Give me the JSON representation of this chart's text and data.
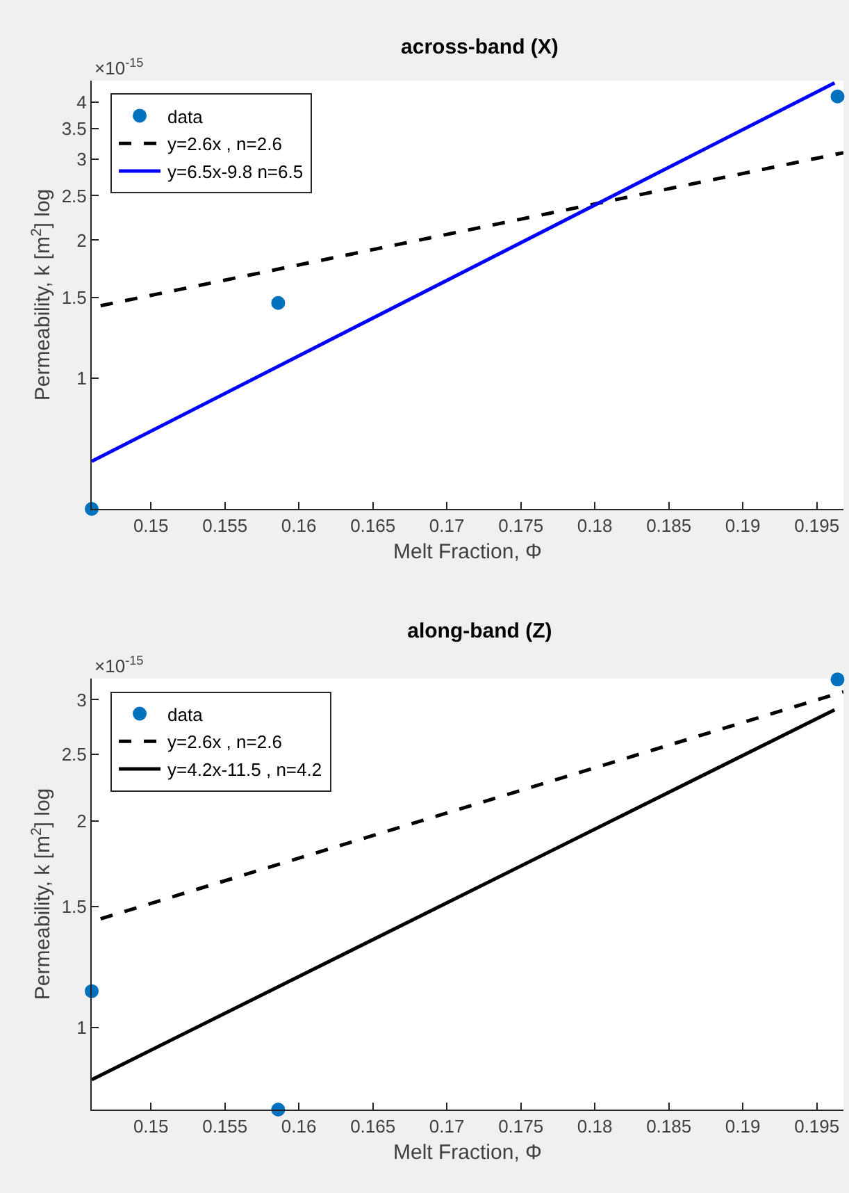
{
  "chart_data": [
    {
      "type": "scatter",
      "title": "across-band (X)",
      "xlabel": "Melt Fraction, Φ",
      "ylabel": "Permeability, k [m$^{2}$] log",
      "annotations": [
        "×10$^{-15}$"
      ],
      "log": true,
      "grid": false,
      "legend": "top left",
      "xlim": [
        0.146,
        0.1968
      ],
      "ylim": [
        0.52,
        4.45
      ],
      "xticks": [
        0.15,
        0.155,
        0.16,
        0.165,
        0.17,
        0.175,
        0.18,
        0.185,
        0.19,
        0.195
      ],
      "yticks": [
        1,
        1.5,
        2,
        2.5,
        3,
        3.5,
        4
      ],
      "series": [
        {
          "name": "data",
          "marker": "circle",
          "color": "#0072bd",
          "x": [
            0.146,
            0.1586,
            0.1964
          ],
          "values": [
            0.52,
            1.46,
            4.11
          ]
        },
        {
          "name": "y=2.6x , n=2.6",
          "type": "line",
          "line_style": "dashed",
          "color": "#000000",
          "x": [
            0.1466,
            0.1968
          ],
          "values": [
            1.44,
            3.1
          ]
        },
        {
          "name": "y=6.5x-9.8 n=6.5",
          "type": "line",
          "line_style": "solid",
          "color": "#0000ff",
          "x": [
            0.146,
            0.1962
          ],
          "values": [
            0.66,
            4.4
          ]
        }
      ]
    },
    {
      "type": "scatter",
      "title": "along-band (Z)",
      "xlabel": "Melt Fraction, Φ",
      "ylabel": "Permeability, k [m$^{2}$] log",
      "annotations": [
        "×10$^{-15}$"
      ],
      "log": true,
      "grid": false,
      "legend": "top left",
      "xlim": [
        0.146,
        0.1968
      ],
      "ylim": [
        0.76,
        3.22
      ],
      "xticks": [
        0.15,
        0.155,
        0.16,
        0.165,
        0.17,
        0.175,
        0.18,
        0.185,
        0.19,
        0.195
      ],
      "yticks": [
        1,
        1.5,
        2,
        2.5,
        3
      ],
      "series": [
        {
          "name": "data",
          "marker": "circle",
          "color": "#0072bd",
          "x": [
            0.146,
            0.1586,
            0.1964
          ],
          "values": [
            1.13,
            0.76,
            3.21
          ]
        },
        {
          "name": "y=2.6x , n=2.6",
          "type": "line",
          "line_style": "dashed",
          "color": "#000000",
          "x": [
            0.1466,
            0.1968
          ],
          "values": [
            1.44,
            3.08
          ]
        },
        {
          "name": "y=4.2x-11.5 , n=4.2",
          "type": "line",
          "line_style": "solid",
          "color": "#000000",
          "x": [
            0.146,
            0.1962
          ],
          "values": [
            0.84,
            2.9
          ]
        }
      ]
    }
  ]
}
